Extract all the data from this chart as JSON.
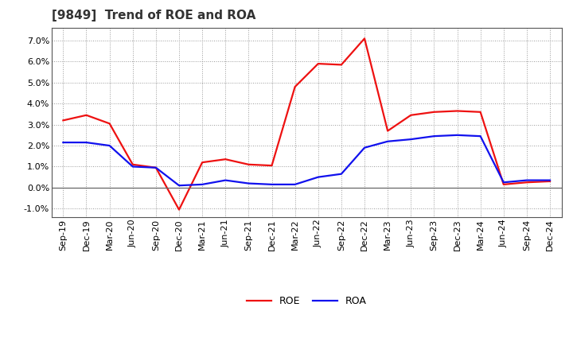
{
  "title": "[9849]  Trend of ROE and ROA",
  "labels": [
    "Sep-19",
    "Dec-19",
    "Mar-20",
    "Jun-20",
    "Sep-20",
    "Dec-20",
    "Mar-21",
    "Jun-21",
    "Sep-21",
    "Dec-21",
    "Mar-22",
    "Jun-22",
    "Sep-22",
    "Dec-22",
    "Mar-23",
    "Jun-23",
    "Sep-23",
    "Dec-23",
    "Mar-24",
    "Jun-24",
    "Sep-24",
    "Dec-24"
  ],
  "roe": [
    3.2,
    3.45,
    3.05,
    1.1,
    0.95,
    -1.05,
    1.2,
    1.35,
    1.1,
    1.05,
    4.8,
    5.9,
    5.85,
    7.1,
    2.7,
    3.45,
    3.6,
    3.65,
    3.6,
    0.15,
    0.25,
    0.3
  ],
  "roa": [
    2.15,
    2.15,
    2.0,
    1.0,
    0.95,
    0.1,
    0.15,
    0.35,
    0.2,
    0.15,
    0.15,
    0.5,
    0.65,
    1.9,
    2.2,
    2.3,
    2.45,
    2.5,
    2.45,
    0.25,
    0.35,
    0.35
  ],
  "roe_color": "#ee1111",
  "roa_color": "#1111ee",
  "ylim": [
    -1.4,
    7.6
  ],
  "yticks": [
    -1.0,
    0.0,
    1.0,
    2.0,
    3.0,
    4.0,
    5.0,
    6.0,
    7.0
  ],
  "background_color": "#ffffff",
  "grid_color": "#999999",
  "title_fontsize": 11,
  "tick_fontsize": 8,
  "legend_fontsize": 9,
  "line_width": 1.6
}
